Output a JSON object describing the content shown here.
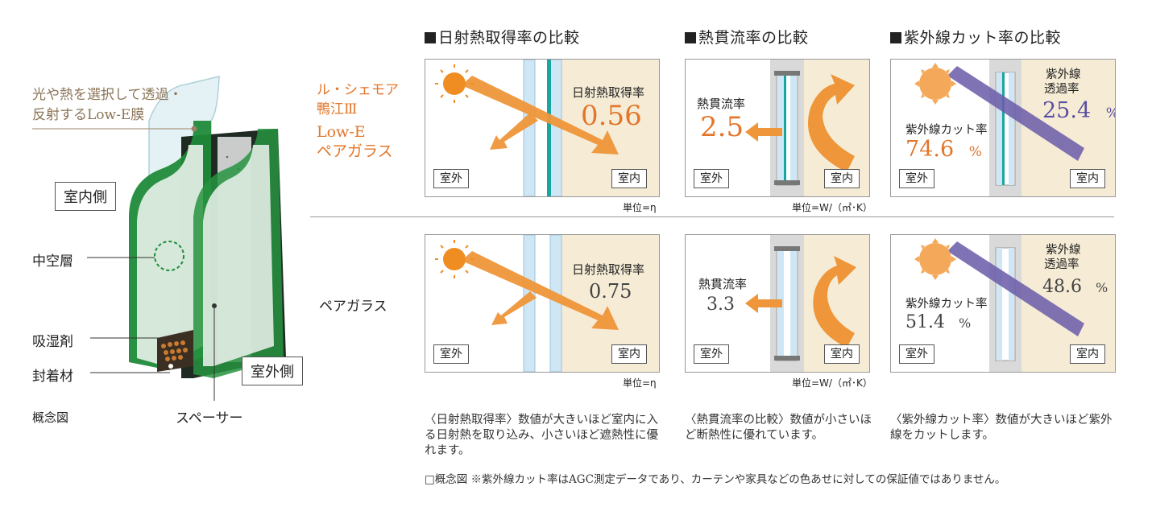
{
  "left": {
    "lowe_caption_line1": "光や熱を選択して透過・",
    "lowe_caption_line2": "反射するLow-E膜",
    "indoor_label": "室内側",
    "outdoor_label": "室外側",
    "hollow_layer": "中空層",
    "desiccant": "吸湿剤",
    "sealant": "封着材",
    "spacer": "スペーサー",
    "concept": "概念図"
  },
  "headers": {
    "solar": "日射熱取得率の比較",
    "thermal": "熱貫流率の比較",
    "uv": "紫外線カット率の比較"
  },
  "rows": {
    "lowe_line1": "ル・シェモア",
    "lowe_line2": "鴨江Ⅲ",
    "lowe_line3": "Low-E",
    "lowe_line4": "ペアガラス",
    "pair": "ペアガラス"
  },
  "panel_labels": {
    "outdoor": "室外",
    "indoor": "室内"
  },
  "values": {
    "solar_label": "日射熱取得率",
    "thermal_label": "熱貫流率",
    "uv_cut_label": "紫外線カット率",
    "uv_trans_label_line1": "紫外線",
    "uv_trans_label_line2": "透過率",
    "percent": "%",
    "lowe_solar": "0.56",
    "pair_solar": "0.75",
    "lowe_thermal": "2.5",
    "pair_thermal": "3.3",
    "lowe_uv_trans": "25.4",
    "lowe_uv_cut": "74.6",
    "pair_uv_trans": "48.6",
    "pair_uv_cut": "51.4"
  },
  "units": {
    "solar": "単位=η",
    "thermal": "単位=W/（㎡･K）"
  },
  "notes": {
    "solar": "〈日射熱取得率〉数値が大きいほど室内に入る日射熱を取り込み、小さいほど遮熱性に優れます。",
    "thermal": "〈熱貫流率の比較〉数値が小さいほど断熱性に優れています。",
    "uv": "〈紫外線カット率〉数値が大きいほど紫外線をカットします。",
    "footer": "□概念図 ※紫外線カット率はAGC測定データであり、カーテンや家具などの色あせに対しての保証値ではありません。"
  },
  "colors": {
    "accent_orange": "#e2762a",
    "purple": "#6a5aa8",
    "green_frame": "#1f8a3a",
    "indoor_bg": "#f6ecd6",
    "glass": "#cfe6f5",
    "lowe_film": "#1aa5a0"
  }
}
